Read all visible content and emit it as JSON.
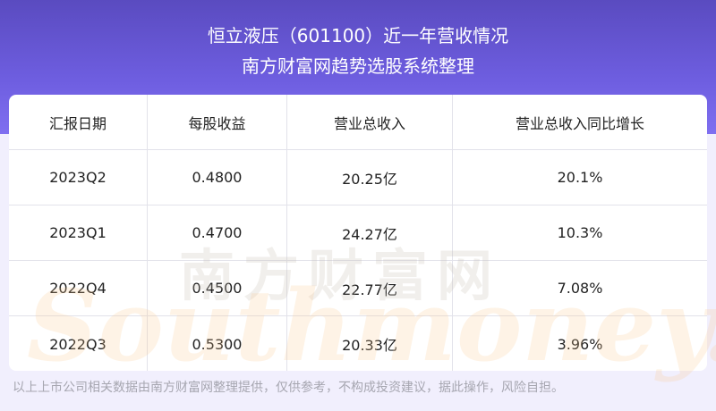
{
  "header": {
    "title": "恒立液压（601100）近一年营收情况",
    "subtitle": "南方财富网趋势选股系统整理"
  },
  "table": {
    "columns": [
      "汇报日期",
      "每股收益",
      "营业总收入",
      "营业总收入同比增长"
    ],
    "rows": [
      [
        "2023Q2",
        "0.4800",
        "20.25亿",
        "20.1%"
      ],
      [
        "2023Q1",
        "0.4700",
        "24.27亿",
        "10.3%"
      ],
      [
        "2022Q4",
        "0.4500",
        "22.77亿",
        "7.08%"
      ],
      [
        "2022Q3",
        "0.5300",
        "20.33亿",
        "3.96%"
      ]
    ]
  },
  "watermark": {
    "cn": "南方财富网",
    "en": "Southmoney.com"
  },
  "footer": "以上上市公司相关数据由南方财富网整理提供，仅供参考，不构成投资建议，据此操作，风险自担。",
  "colors": {
    "header": "#6e5ee0",
    "background": "#f1effd"
  }
}
